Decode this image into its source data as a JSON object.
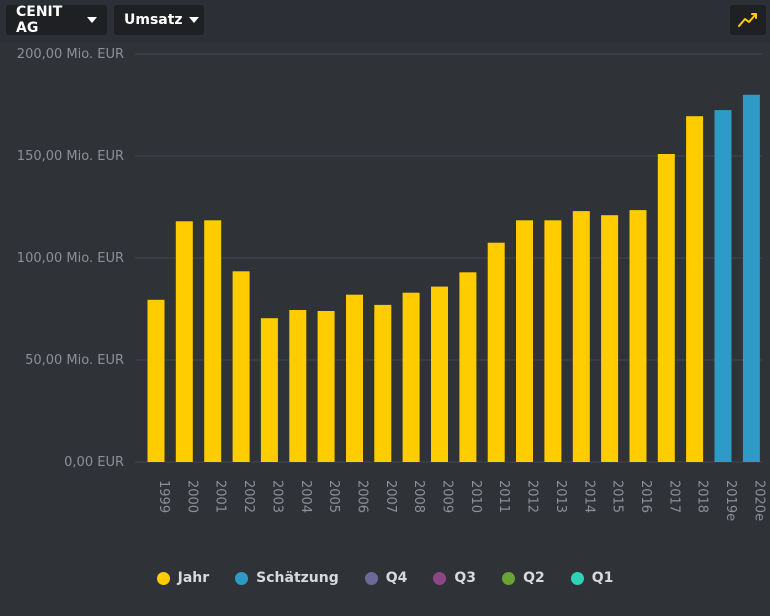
{
  "toolbar": {
    "company_label": "CENIT AG",
    "metric_label": "Umsatz",
    "chart_type_icon": "line-chart-icon"
  },
  "colors": {
    "actual": "#ffcc00",
    "estimate": "#2e9bc6",
    "q4": "#6d6897",
    "q3": "#8e4585",
    "q2": "#6aa434",
    "q1": "#2ed3b5",
    "grid": "#43464c",
    "text": "#8d9096"
  },
  "legend": [
    {
      "label": "Jahr",
      "color": "#ffcc00"
    },
    {
      "label": "Schätzung",
      "color": "#2e9bc6"
    },
    {
      "label": "Q4",
      "color": "#6d6897"
    },
    {
      "label": "Q3",
      "color": "#8e4585"
    },
    {
      "label": "Q2",
      "color": "#6aa434"
    },
    {
      "label": "Q1",
      "color": "#2ed3b5"
    }
  ],
  "chart_data": {
    "type": "bar",
    "title": "",
    "xlabel": "",
    "ylabel": "",
    "unit": "Mio. EUR",
    "ylim": [
      0,
      200
    ],
    "yticks": [
      "0,00 EUR",
      "50,00 Mio. EUR",
      "100,00 Mio. EUR",
      "150,00 Mio. EUR",
      "200,00 Mio. EUR"
    ],
    "ytick_values": [
      0,
      50,
      100,
      150,
      200
    ],
    "grid": true,
    "legend_position": "bottom",
    "categories": [
      "1999",
      "2000",
      "2001",
      "2002",
      "2003",
      "2004",
      "2005",
      "2006",
      "2007",
      "2008",
      "2009",
      "2010",
      "2011",
      "2012",
      "2013",
      "2014",
      "2015",
      "2016",
      "2017",
      "2018",
      "2019e",
      "2020e"
    ],
    "series": [
      {
        "name": "Jahr",
        "values": [
          79.5,
          118,
          118.5,
          93.5,
          70.5,
          74.5,
          74,
          82,
          77,
          83,
          86,
          93,
          107.5,
          118.5,
          118.5,
          123,
          121,
          123.5,
          151,
          169.5,
          null,
          null
        ]
      },
      {
        "name": "Schätzung",
        "values": [
          null,
          null,
          null,
          null,
          null,
          null,
          null,
          null,
          null,
          null,
          null,
          null,
          null,
          null,
          null,
          null,
          null,
          null,
          null,
          null,
          172.5,
          180
        ]
      }
    ]
  }
}
